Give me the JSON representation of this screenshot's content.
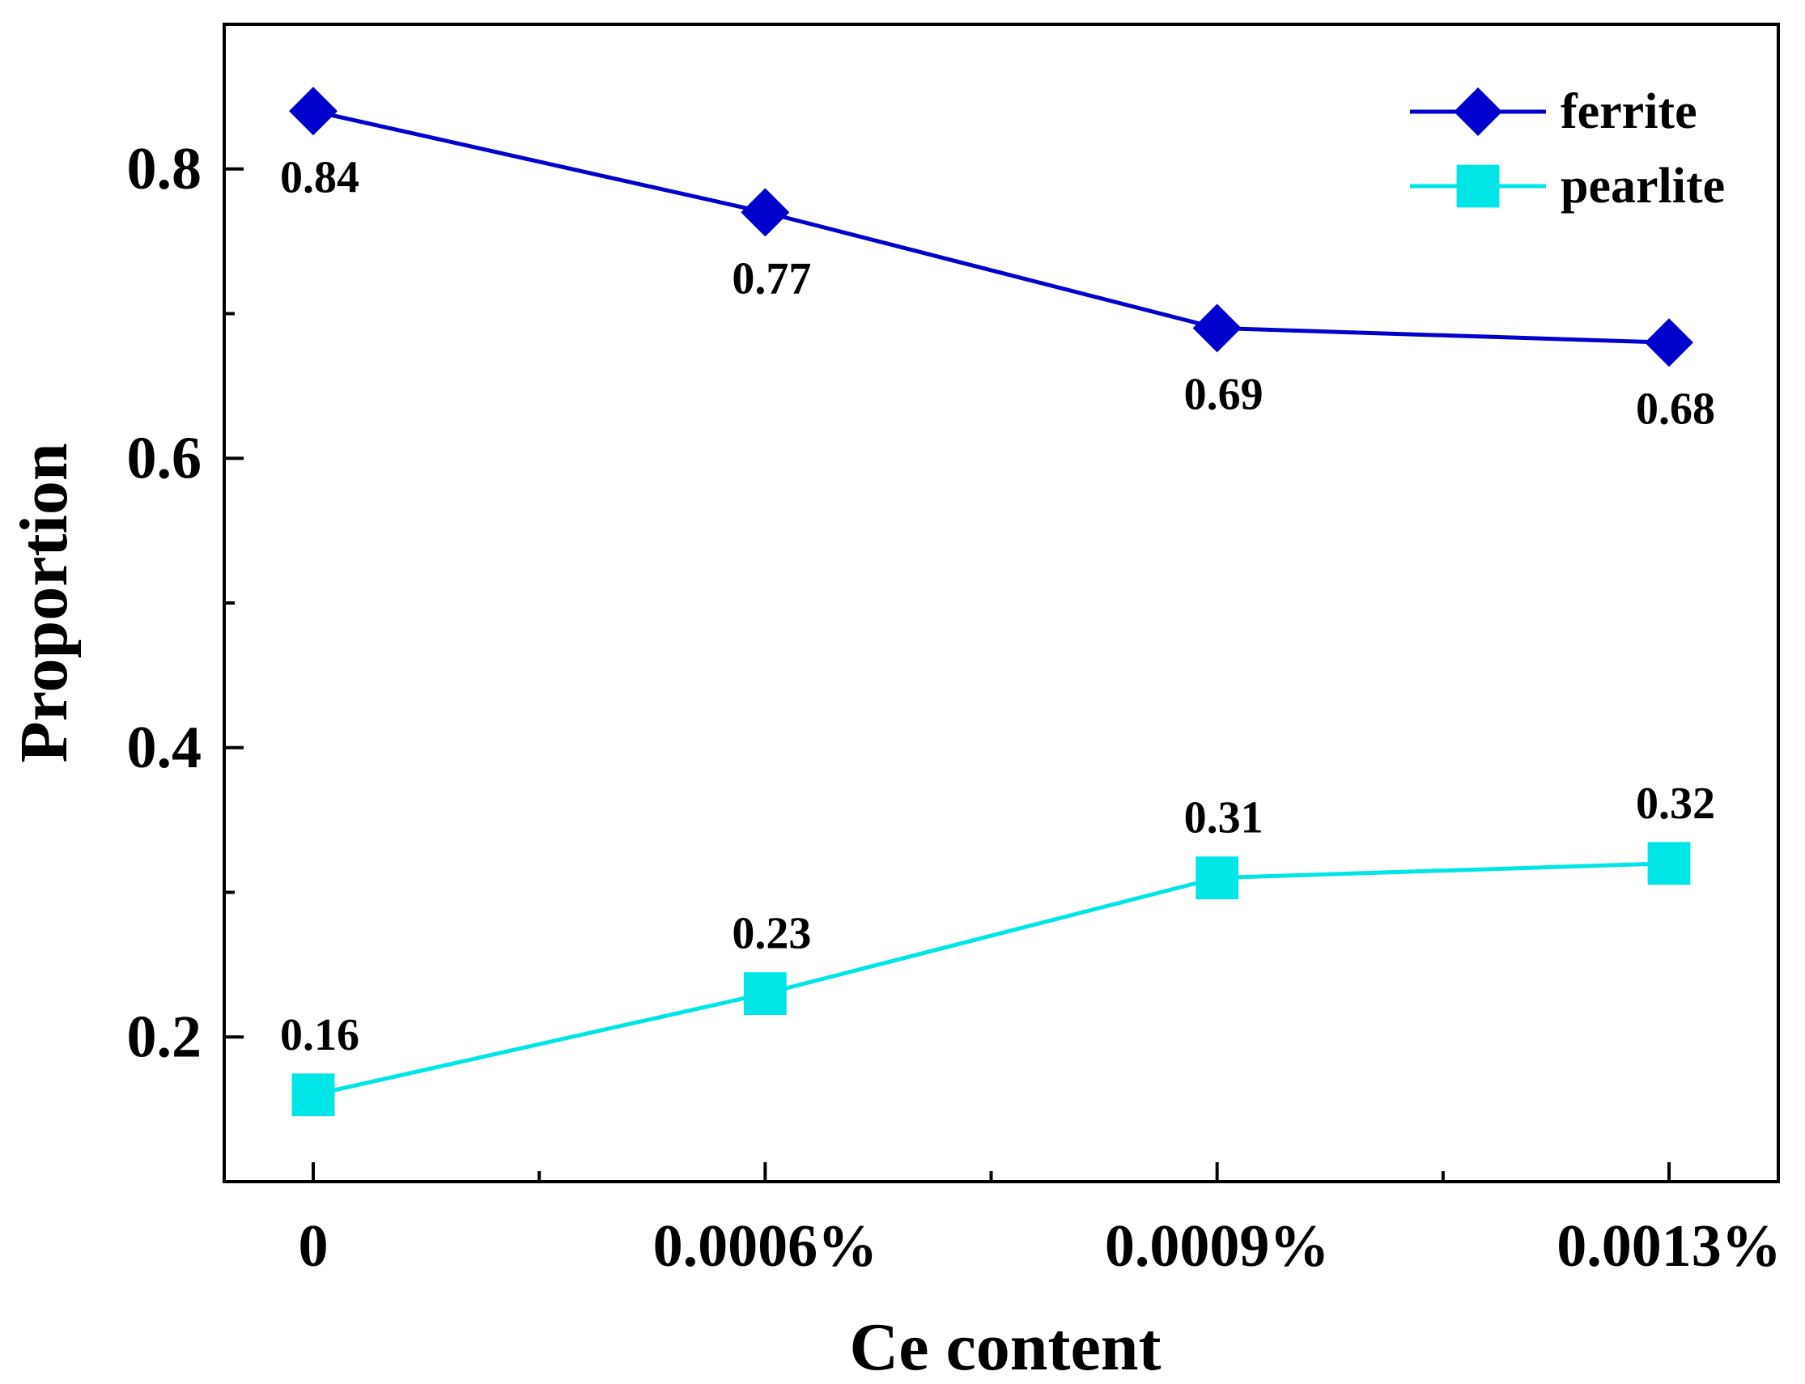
{
  "chart_data": {
    "type": "line",
    "title": "",
    "xlabel": "Ce content",
    "ylabel": "Proportion",
    "categories": [
      "0",
      "0.0006%",
      "0.0009%",
      "0.0013%"
    ],
    "ylim": [
      0.1,
      0.9
    ],
    "y_major_ticks": [
      0.2,
      0.4,
      0.6,
      0.8
    ],
    "y_minor_ticks": [
      0.3,
      0.5,
      0.7
    ],
    "y_tick_labels": [
      "0.2",
      "0.4",
      "0.6",
      "0.8"
    ],
    "grid": false,
    "legend_position": "top-right",
    "series": [
      {
        "name": "ferrite",
        "color": "#0000CC",
        "marker": "diamond",
        "values": [
          0.84,
          0.77,
          0.69,
          0.68
        ],
        "labels": [
          "0.84",
          "0.77",
          "0.69",
          "0.68"
        ],
        "label_position": "below"
      },
      {
        "name": "pearlite",
        "color": "#00E5E5",
        "marker": "square",
        "values": [
          0.16,
          0.23,
          0.31,
          0.32
        ],
        "labels": [
          "0.16",
          "0.23",
          "0.31",
          "0.32"
        ],
        "label_position": "above"
      }
    ]
  }
}
